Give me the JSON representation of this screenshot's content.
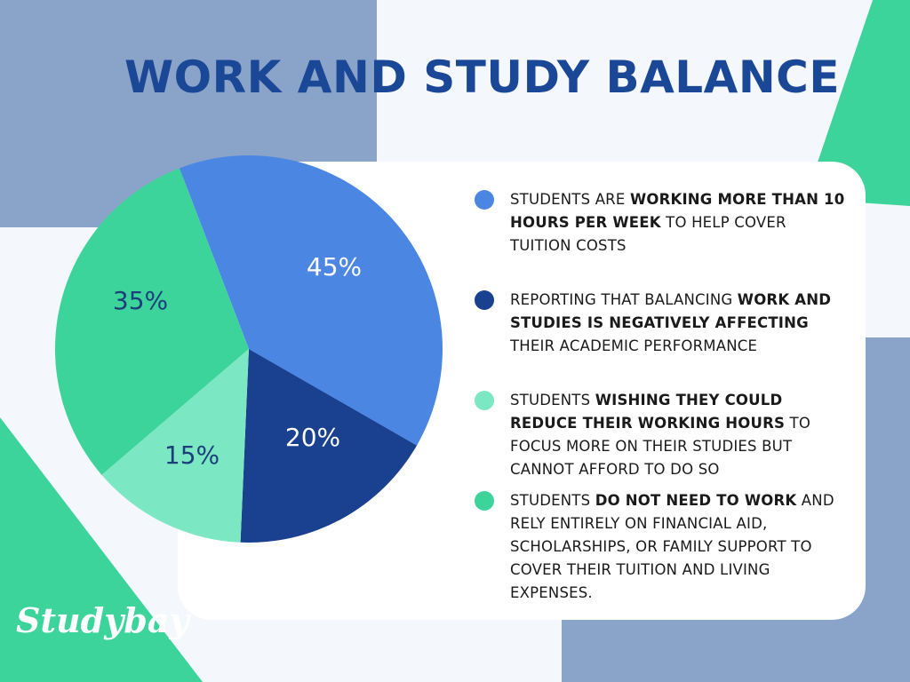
{
  "title": "WORK AND STUDY BALANCE",
  "brand": {
    "logo_text": "Studybay"
  },
  "colors": {
    "title": "#1b4797",
    "bg_block": "#8aa3c8",
    "bg_green": "#3dd49b",
    "card": "#ffffff",
    "label_light": "#ffffff",
    "label_dark": "#1b3f7a"
  },
  "chart_data": {
    "type": "pie",
    "slices": [
      {
        "label": "45%",
        "value": 45,
        "color": "#4b86e3",
        "label_color": "#ffffff"
      },
      {
        "label": "20%",
        "value": 20,
        "color": "#1a418f",
        "label_color": "#ffffff"
      },
      {
        "label": "15%",
        "value": 15,
        "color": "#7ce8c3",
        "label_color": "#1b3f7a"
      },
      {
        "label": "35%",
        "value": 35,
        "color": "#3dd49b",
        "label_color": "#1b3f7a"
      }
    ],
    "legend": [
      {
        "color": "#4b86e3",
        "prefix": "STUDENTS ARE ",
        "bold": "WORKING MORE THAN 10 HOURS PER WEEK",
        "suffix": " TO HELP COVER TUITION COSTS"
      },
      {
        "color": "#1a418f",
        "prefix": "REPORTING THAT BALANCING ",
        "bold": "WORK AND STUDIES IS NEGATIVELY AFFECTING",
        "suffix": " THEIR ACADEMIC PERFORMANCE"
      },
      {
        "color": "#7ce8c3",
        "prefix": "STUDENTS ",
        "bold": "WISHING THEY COULD REDUCE THEIR WORKING HOURS",
        "suffix": " TO FOCUS MORE ON THEIR STUDIES BUT CANNOT AFFORD TO DO SO"
      },
      {
        "color": "#3dd49b",
        "prefix": "STUDENTS ",
        "bold": "DO NOT NEED TO WORK",
        "suffix": " AND RELY ENTIRELY ON FINANCIAL AID, SCHOLARSHIPS, OR FAMILY SUPPORT TO COVER THEIR TUITION AND LIVING EXPENSES."
      }
    ]
  }
}
